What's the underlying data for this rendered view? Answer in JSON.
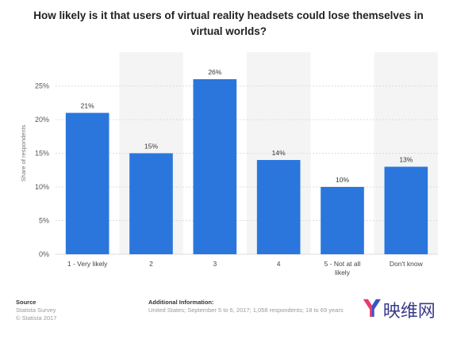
{
  "title": "How likely is it that users of virtual reality headsets could lose themselves in virtual worlds?",
  "colors": {
    "bar": "#2a76dd",
    "band": "#f4f4f4",
    "grid": "#dddddd",
    "logo_y_left": "#e83a6e",
    "logo_y_right": "#3a52c4",
    "logo_text": "#3a3a8c"
  },
  "chart_data": {
    "type": "bar",
    "categories": [
      "1 - Very likely",
      "2",
      "3",
      "4",
      "5 - Not at all likely",
      "Don't know"
    ],
    "values": [
      21,
      15,
      26,
      14,
      10,
      13
    ],
    "value_labels": [
      "21%",
      "15%",
      "26%",
      "14%",
      "10%",
      "13%"
    ],
    "ylabel": "Share of respondents",
    "ylim": [
      0,
      30
    ],
    "yticks": [
      0,
      5,
      10,
      15,
      20,
      25
    ],
    "ytick_labels": [
      "0%",
      "5%",
      "10%",
      "15%",
      "20%",
      "25%"
    ],
    "grid": true
  },
  "footer": {
    "source_heading": "Source",
    "source_lines": [
      "Statista Survey",
      "© Statista 2017"
    ],
    "info_heading": "Additional Information:",
    "info_text": "United States; September 5 to 6, 2017; 1,058 respondents; 18 to 69 years"
  },
  "brand": {
    "mark": "Y",
    "text": "映维网"
  }
}
